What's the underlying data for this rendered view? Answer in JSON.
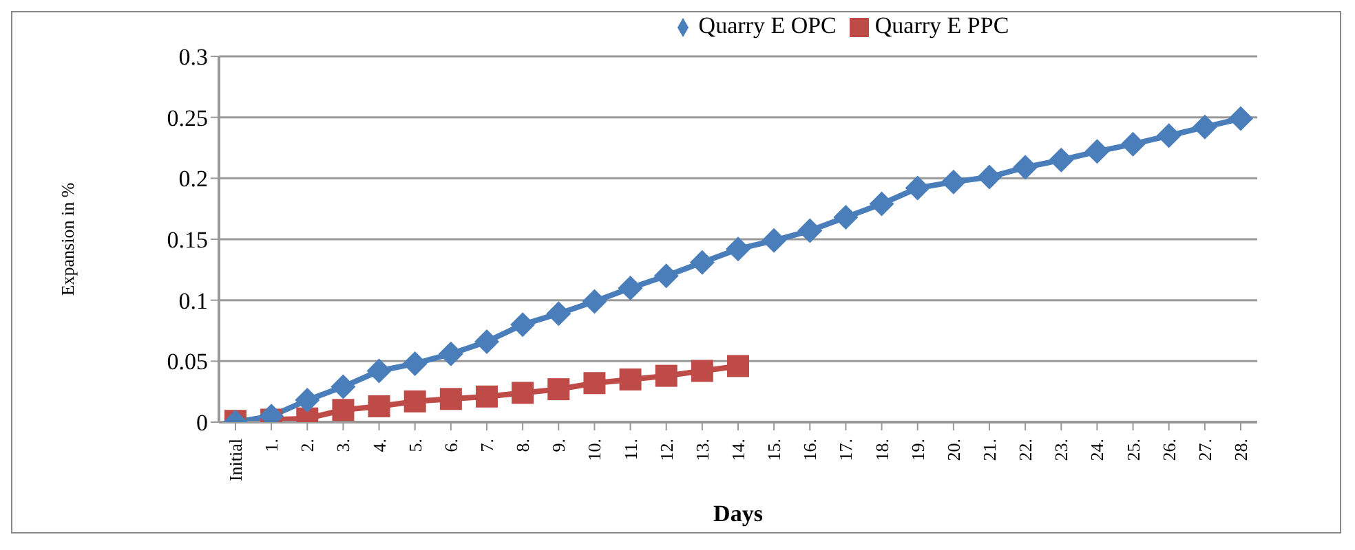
{
  "chart_data": {
    "type": "line",
    "xlabel": "Days",
    "ylabel": "Expansion in %",
    "categories": [
      "Initial",
      "1.",
      "2.",
      "3.",
      "4.",
      "5.",
      "6.",
      "7.",
      "8.",
      "9.",
      "10.",
      "11.",
      "12.",
      "13.",
      "14.",
      "15.",
      "16.",
      "17.",
      "18.",
      "19.",
      "20.",
      "21.",
      "22.",
      "23.",
      "24.",
      "25.",
      "26.",
      "27.",
      "28."
    ],
    "series": [
      {
        "name": "Quarry E OPC",
        "color": "#4a7ebb",
        "marker": "diamond",
        "values": [
          0,
          0.005,
          0.018,
          0.029,
          0.042,
          0.048,
          0.056,
          0.066,
          0.08,
          0.089,
          0.099,
          0.11,
          0.12,
          0.131,
          0.142,
          0.149,
          0.157,
          0.168,
          0.179,
          0.192,
          0.197,
          0.201,
          0.209,
          0.215,
          0.222,
          0.228,
          0.235,
          0.242,
          0.249
        ]
      },
      {
        "name": "Quarry E PPC",
        "color": "#be4b48",
        "marker": "square",
        "values": [
          0.001,
          0.002,
          0.003,
          0.01,
          0.013,
          0.017,
          0.019,
          0.021,
          0.024,
          0.027,
          0.032,
          0.035,
          0.038,
          0.042,
          0.046,
          null,
          null,
          null,
          null,
          null,
          null,
          null,
          null,
          null,
          null,
          null,
          null,
          null,
          null
        ]
      }
    ],
    "ylim": [
      0,
      0.3
    ],
    "yticks": [
      0,
      0.05,
      0.1,
      0.15,
      0.2,
      0.25,
      0.3
    ],
    "grid": "y",
    "legend": "top"
  }
}
